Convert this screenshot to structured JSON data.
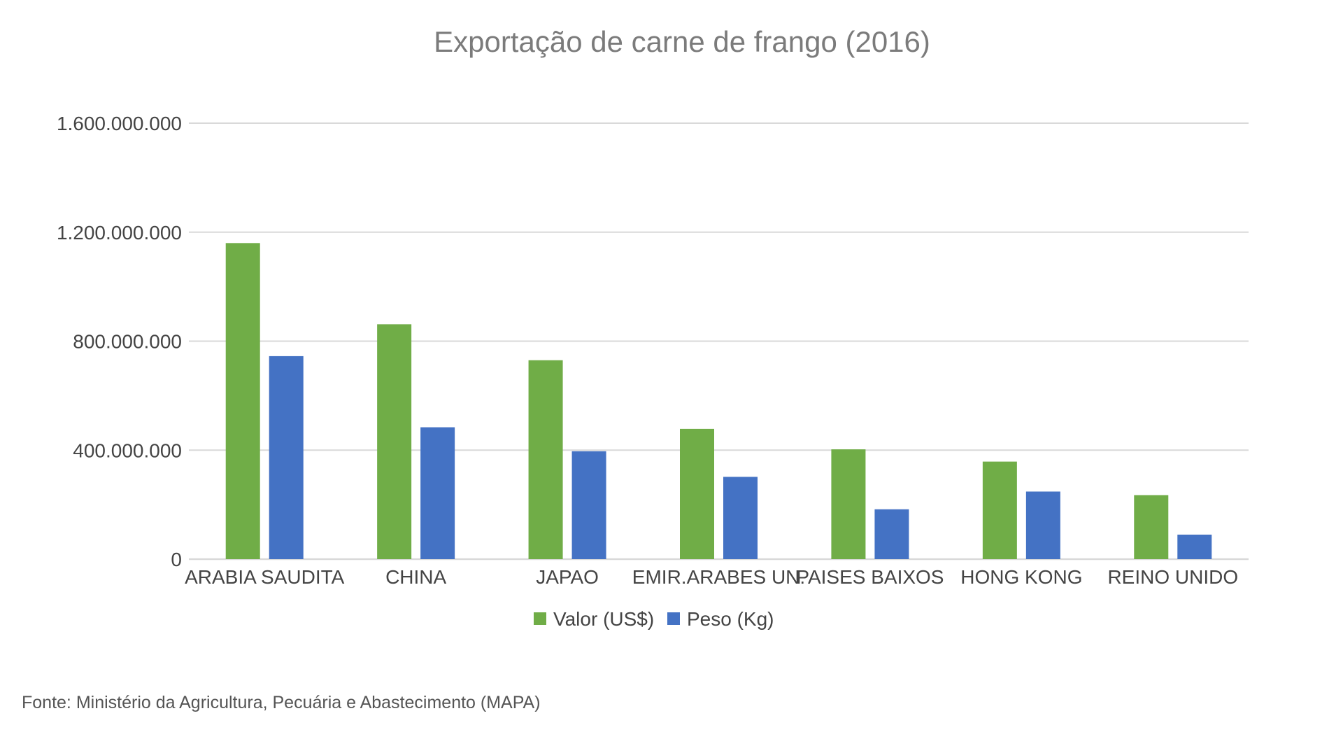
{
  "chart_data": {
    "type": "bar",
    "title": "Exportação de carne de frango (2016)",
    "categories": [
      "ARABIA SAUDITA",
      "CHINA",
      "JAPAO",
      "EMIR.ARABES UN.",
      "PAISES BAIXOS",
      "HONG KONG",
      "REINO UNIDO"
    ],
    "series": [
      {
        "name": "Valor (US$)",
        "color": "#70ad47",
        "values": [
          1160000000,
          862000000,
          730000000,
          478000000,
          403000000,
          358000000,
          235000000
        ]
      },
      {
        "name": "Peso (Kg)",
        "color": "#4472c4",
        "values": [
          745000000,
          484000000,
          396000000,
          302000000,
          183000000,
          248000000,
          90000000
        ]
      }
    ],
    "yticks": [
      0,
      400000000,
      800000000,
      1200000000,
      1600000000
    ],
    "ytick_labels": [
      "0",
      "400.000.000",
      "800.000.000",
      "1.200.000.000",
      "1.600.000.000"
    ],
    "ylim": [
      0,
      1600000000
    ],
    "grid": true,
    "legend_position": "bottom"
  },
  "source": "Fonte: Ministério da Agricultura, Pecuária e Abastecimento (MAPA)",
  "colors": {
    "grid": "#d9d9d9",
    "axis": "#d9d9d9"
  }
}
